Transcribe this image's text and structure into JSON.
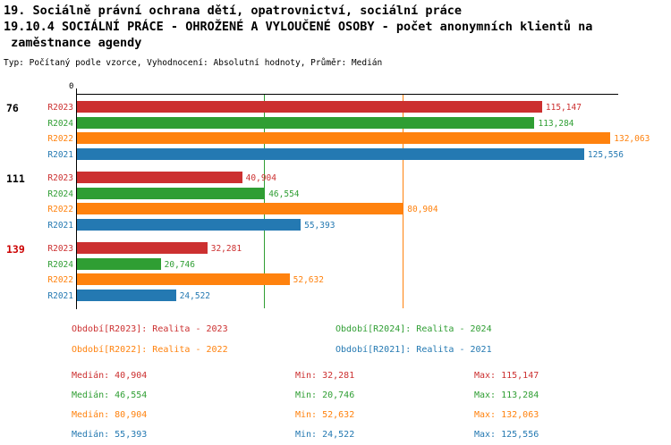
{
  "header": {
    "title_line1": "19. Sociálně právní ochrana dětí, opatrovnictví, sociální práce",
    "title_line2": "19.10.4 SOCIÁLNÍ PRÁCE - OHROŽENÉ A VYLOUČENÉ OSOBY - počet anonymních klientů na",
    "title_line3": " zaměstnance agendy",
    "subtitle": "Typ: Počítaný podle vzorce, Vyhodnocení: Absolutní hodnoty, Průměr: Medián"
  },
  "chart_data": {
    "type": "bar",
    "orientation": "horizontal",
    "xlim": [
      0,
      134000
    ],
    "grid": false,
    "origin_label": "0",
    "colors": {
      "R2023": "#cc3030",
      "R2024": "#2f9e33",
      "R2022": "#ff820e",
      "R2021": "#2479b2"
    },
    "groups": [
      {
        "label": "76",
        "label_color": "#000000",
        "bars": [
          {
            "series": "R2023",
            "value": 115147,
            "display": "115,147"
          },
          {
            "series": "R2024",
            "value": 113284,
            "display": "113,284"
          },
          {
            "series": "R2022",
            "value": 132063,
            "display": "132,063"
          },
          {
            "series": "R2021",
            "value": 125556,
            "display": "125,556"
          }
        ]
      },
      {
        "label": "111",
        "label_color": "#000000",
        "bars": [
          {
            "series": "R2023",
            "value": 40904,
            "display": "40,904"
          },
          {
            "series": "R2024",
            "value": 46554,
            "display": "46,554"
          },
          {
            "series": "R2022",
            "value": 80904,
            "display": "80,904"
          },
          {
            "series": "R2021",
            "value": 55393,
            "display": "55,393"
          }
        ]
      },
      {
        "label": "139",
        "label_color": "#cc0000",
        "bars": [
          {
            "series": "R2023",
            "value": 32281,
            "display": "32,281"
          },
          {
            "series": "R2024",
            "value": 20746,
            "display": "20,746"
          },
          {
            "series": "R2022",
            "value": 52632,
            "display": "52,632"
          },
          {
            "series": "R2021",
            "value": 24522,
            "display": "24,522"
          }
        ]
      }
    ],
    "median_lines": [
      {
        "series": "R2024",
        "value": 46554
      },
      {
        "series": "R2022",
        "value": 80904
      }
    ]
  },
  "legend": {
    "items": [
      {
        "series": "R2023",
        "label": "Období[R2023]: Realita - 2023"
      },
      {
        "series": "R2024",
        "label": "Období[R2024]: Realita - 2024"
      },
      {
        "series": "R2022",
        "label": "Období[R2022]: Realita - 2022"
      },
      {
        "series": "R2021",
        "label": "Období[R2021]: Realita - 2021"
      }
    ]
  },
  "stats": {
    "labels": {
      "median": "Medián: ",
      "min": "Min: ",
      "max": "Max: "
    },
    "rows": [
      {
        "series": "R2023",
        "median": "40,904",
        "min": "32,281",
        "max": "115,147"
      },
      {
        "series": "R2024",
        "median": "46,554",
        "min": "20,746",
        "max": "113,284"
      },
      {
        "series": "R2022",
        "median": "80,904",
        "min": "52,632",
        "max": "132,063"
      },
      {
        "series": "R2021",
        "median": "55,393",
        "min": "24,522",
        "max": "125,556"
      }
    ]
  }
}
